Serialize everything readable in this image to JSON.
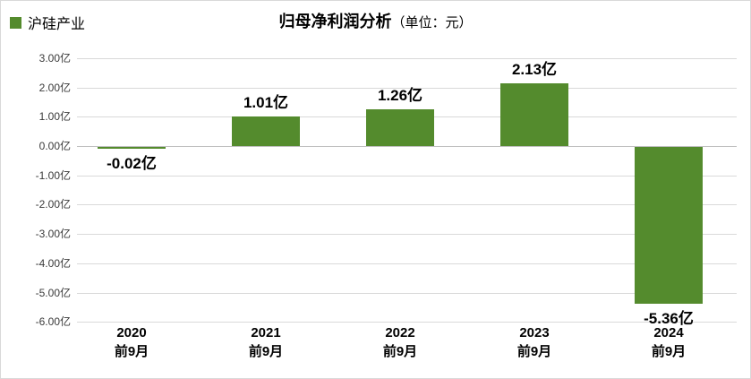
{
  "legend": {
    "label": "沪硅产业",
    "color": "#548B2D"
  },
  "title": {
    "main": "归母净利润分析",
    "unit": "（单位：元）"
  },
  "chart_data": {
    "type": "bar",
    "title": "归母净利润分析（单位：元）",
    "series_name": "沪硅产业",
    "categories": [
      [
        "2020",
        "前9月"
      ],
      [
        "2021",
        "前9月"
      ],
      [
        "2022",
        "前9月"
      ],
      [
        "2023",
        "前9月"
      ],
      [
        "2024",
        "前9月"
      ]
    ],
    "values": [
      -0.02,
      1.01,
      1.26,
      2.13,
      -5.36
    ],
    "data_labels": [
      "-0.02亿",
      "1.01亿",
      "1.26亿",
      "2.13亿",
      "-5.36亿"
    ],
    "value_unit": "亿",
    "y_ticks": [
      3,
      2,
      1,
      0,
      -1,
      -2,
      -3,
      -4,
      -5,
      -6
    ],
    "y_tick_labels": [
      "3.00亿",
      "2.00亿",
      "1.00亿",
      "0.00亿",
      "-1.00亿",
      "-2.00亿",
      "-3.00亿",
      "-4.00亿",
      "-5.00亿",
      "-6.00亿"
    ],
    "ylim": [
      -6,
      3
    ],
    "grid": true,
    "legend_position": "top-left",
    "bar_color": "#548B2D",
    "grid_color": "#D9D9D9",
    "zero_line_color": "#BFBFBF"
  }
}
